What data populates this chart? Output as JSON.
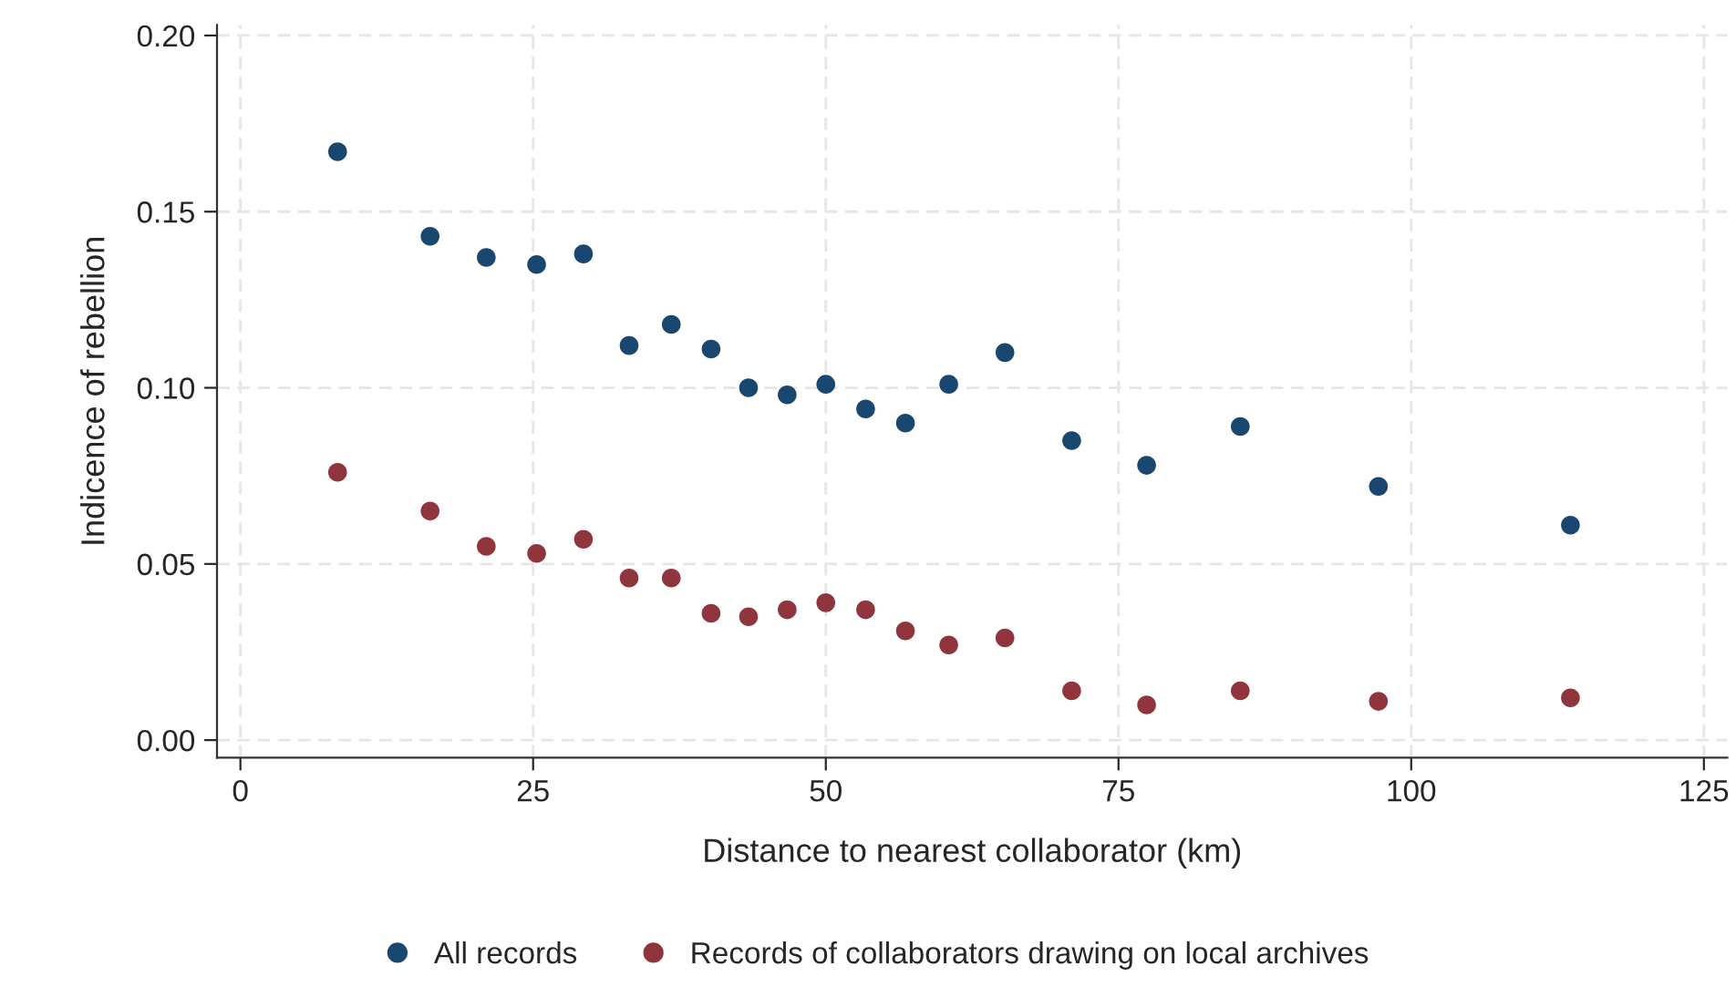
{
  "chart_data": {
    "type": "scatter",
    "xlabel": "Distance to nearest collaborator (km)",
    "ylabel": "Indicence of rebellion",
    "x": [
      8.3,
      16.2,
      21.0,
      25.3,
      29.3,
      33.2,
      36.8,
      40.2,
      43.4,
      46.7,
      50.0,
      53.4,
      56.8,
      60.5,
      65.3,
      71.0,
      77.4,
      85.4,
      97.2,
      113.6
    ],
    "series": [
      {
        "name": "All records",
        "color": "#1a476f",
        "values": [
          0.167,
          0.143,
          0.137,
          0.135,
          0.138,
          0.112,
          0.118,
          0.111,
          0.1,
          0.098,
          0.101,
          0.094,
          0.09,
          0.101,
          0.11,
          0.085,
          0.078,
          0.089,
          0.072,
          0.061
        ]
      },
      {
        "name": "Records of collaborators drawing on local archives",
        "color": "#90353b",
        "values": [
          0.076,
          0.065,
          0.055,
          0.053,
          0.057,
          0.046,
          0.046,
          0.036,
          0.035,
          0.037,
          0.039,
          0.037,
          0.031,
          0.027,
          0.029,
          0.014,
          0.01,
          0.014,
          0.011,
          0.012
        ]
      }
    ],
    "xlim": [
      -2,
      127
    ],
    "xticks": [
      0,
      25,
      50,
      75,
      100,
      125
    ],
    "ylim": [
      -0.005,
      0.203
    ],
    "yticks": [
      {
        "value": 0,
        "label": "0.00"
      },
      {
        "value": 0.05,
        "label": "0.05"
      },
      {
        "value": 0.1,
        "label": "0.10"
      },
      {
        "value": 0.15,
        "label": "0.15"
      },
      {
        "value": 0.2,
        "label": "0.20"
      }
    ],
    "grid": true,
    "legend": "bottom",
    "marker": "circle"
  }
}
